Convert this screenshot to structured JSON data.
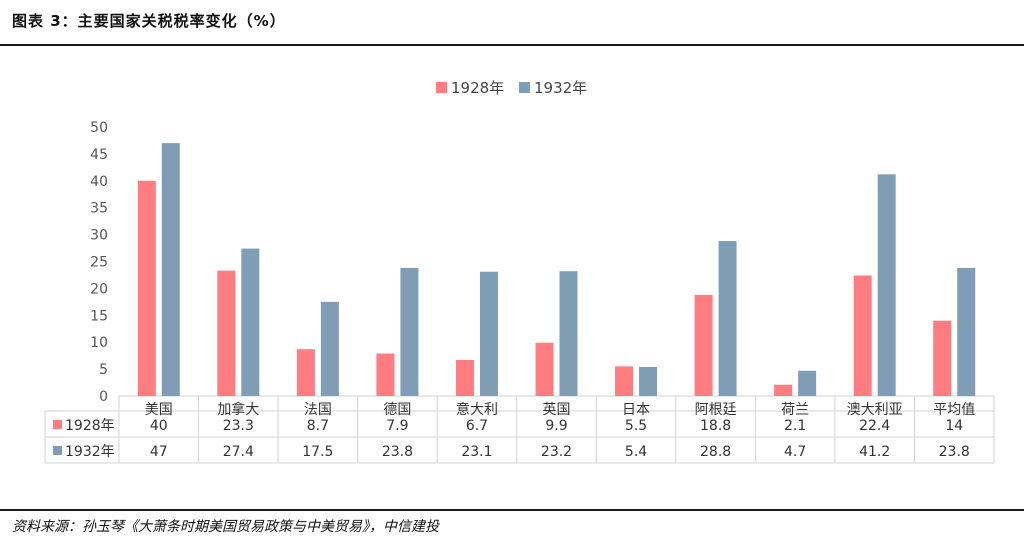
{
  "header": {
    "title": "图表 3：主要国家关税税率变化（%）"
  },
  "footer": {
    "source": "资料来源：孙玉琴《大萧条时期美国贸易政策与中美贸易》，中信建投"
  },
  "chart_data": {
    "type": "bar",
    "categories": [
      "美国",
      "加拿大",
      "法国",
      "德国",
      "意大利",
      "英国",
      "日本",
      "阿根廷",
      "荷兰",
      "澳大利亚",
      "平均值"
    ],
    "series": [
      {
        "name": "1928年",
        "color": "#ff7c80",
        "values": [
          40,
          23.3,
          8.7,
          7.9,
          6.7,
          9.9,
          5.5,
          18.8,
          2.1,
          22.4,
          14
        ],
        "labels": [
          "40",
          "23.3",
          "8.7",
          "7.9",
          "6.7",
          "9.9",
          "5.5",
          "18.8",
          "2.1",
          "22.4",
          "14"
        ]
      },
      {
        "name": "1932年",
        "color": "#7f9eb6",
        "values": [
          47,
          27.4,
          17.5,
          23.8,
          23.1,
          23.2,
          5.4,
          28.8,
          4.7,
          41.2,
          23.8
        ],
        "labels": [
          "47",
          "27.4",
          "17.5",
          "23.8",
          "23.1",
          "23.2",
          "5.4",
          "28.8",
          "4.7",
          "41.2",
          "23.8"
        ]
      }
    ],
    "ylim": [
      0,
      50
    ],
    "yticks": [
      "0",
      "5",
      "10",
      "15",
      "20",
      "25",
      "30",
      "35",
      "40",
      "45",
      "50"
    ],
    "legend_position": "top-center",
    "data_table": true,
    "grid": false
  }
}
